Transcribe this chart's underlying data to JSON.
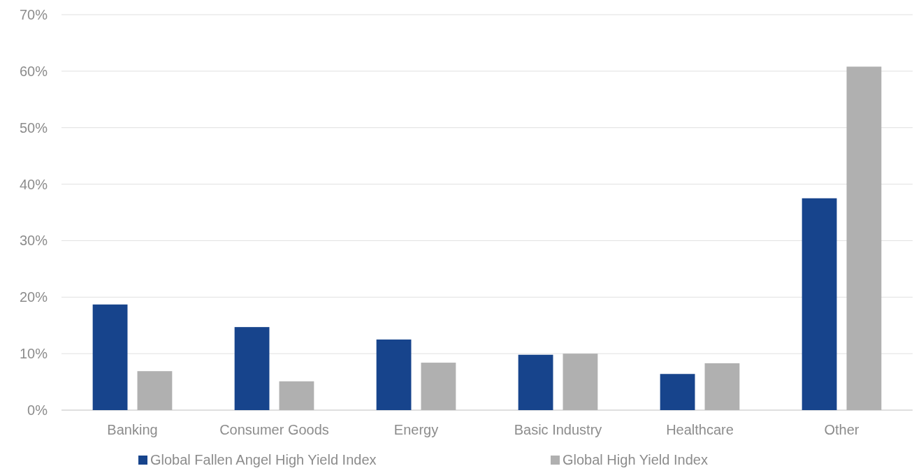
{
  "chart_data": {
    "type": "bar",
    "categories": [
      "Banking",
      "Consumer Goods",
      "Energy",
      "Basic Industry",
      "Healthcare",
      "Other"
    ],
    "series": [
      {
        "name": "Global Fallen Angel High Yield Index",
        "color": "#17448c",
        "values": [
          18.7,
          14.7,
          12.5,
          9.8,
          6.4,
          37.5
        ]
      },
      {
        "name": "Global High Yield Index",
        "color": "#b0b0b0",
        "values": [
          6.9,
          5.1,
          8.4,
          10.0,
          8.3,
          60.8
        ]
      }
    ],
    "ylim": [
      0,
      70
    ],
    "yticks": [
      {
        "value": 0,
        "label": "0%"
      },
      {
        "value": 10,
        "label": "10%"
      },
      {
        "value": 20,
        "label": "20%"
      },
      {
        "value": 30,
        "label": "30%"
      },
      {
        "value": 40,
        "label": "40%"
      },
      {
        "value": 50,
        "label": "50%"
      },
      {
        "value": 60,
        "label": "60%"
      },
      {
        "value": 70,
        "label": "70%"
      }
    ],
    "grid": "y",
    "legend": "bottom"
  }
}
